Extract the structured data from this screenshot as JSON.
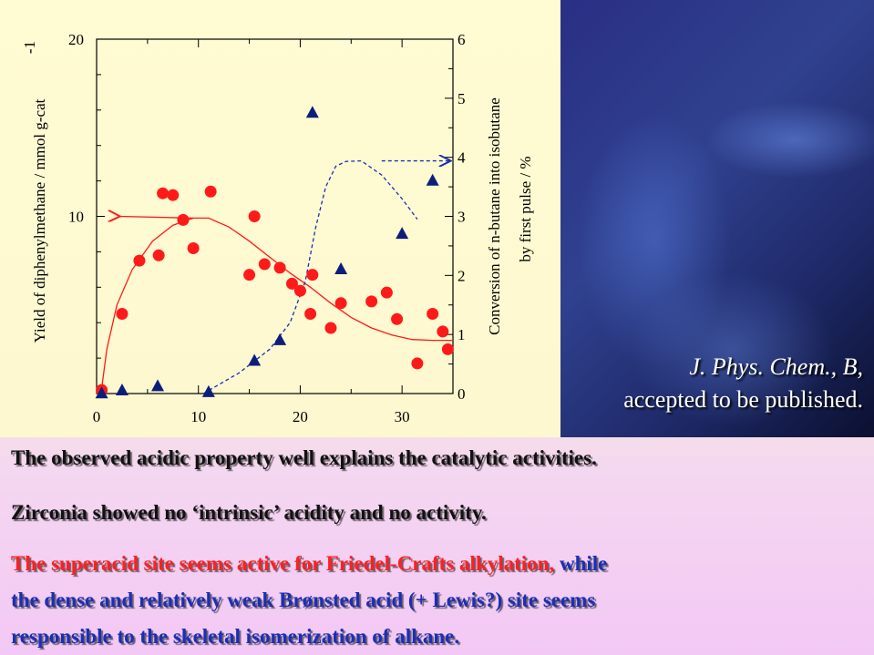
{
  "chart_data": {
    "type": "scatter",
    "x_ticks": [
      0,
      10,
      20,
      30
    ],
    "xlim": [
      0,
      35
    ],
    "y_left": {
      "label": "Yield of diphenylmethane / mmol g-cat",
      "label_sup": "-1",
      "ticks": [
        10,
        20
      ],
      "ylim": [
        0,
        20
      ]
    },
    "y_right": {
      "label_line1": "Conversion of n-butane into isobutane",
      "label_line2": "by first pulse / %",
      "ticks": [
        0,
        1,
        2,
        3,
        4,
        5,
        6
      ],
      "ylim": [
        0,
        6
      ]
    },
    "series": [
      {
        "axis": "left",
        "marker": "circle",
        "color": "#ff1a1a",
        "points": [
          [
            0.5,
            0.2
          ],
          [
            2.5,
            4.5
          ],
          [
            4.2,
            7.5
          ],
          [
            6.1,
            7.8
          ],
          [
            6.5,
            11.3
          ],
          [
            7.5,
            11.2
          ],
          [
            8.5,
            9.8
          ],
          [
            9.5,
            8.2
          ],
          [
            11.2,
            11.4
          ],
          [
            15.0,
            6.7
          ],
          [
            15.5,
            10.0
          ],
          [
            16.5,
            7.3
          ],
          [
            18.0,
            7.1
          ],
          [
            19.2,
            6.2
          ],
          [
            20.0,
            5.8
          ],
          [
            21.0,
            4.5
          ],
          [
            21.2,
            6.7
          ],
          [
            23.0,
            3.7
          ],
          [
            24.0,
            5.1
          ],
          [
            27.0,
            5.2
          ],
          [
            28.5,
            5.7
          ],
          [
            29.5,
            4.2
          ],
          [
            31.5,
            1.7
          ],
          [
            33.0,
            4.5
          ],
          [
            34.0,
            3.5
          ],
          [
            34.5,
            2.5
          ]
        ]
      },
      {
        "axis": "right",
        "marker": "triangle",
        "color": "#0d1e7a",
        "points": [
          [
            0.5,
            0.0
          ],
          [
            2.5,
            0.05
          ],
          [
            6.0,
            0.12
          ],
          [
            11.0,
            0.02
          ],
          [
            15.5,
            0.55
          ],
          [
            18.0,
            0.9
          ],
          [
            21.2,
            4.75
          ],
          [
            24.0,
            2.1
          ],
          [
            30.0,
            2.7
          ],
          [
            33.0,
            3.6
          ]
        ]
      }
    ],
    "trend_lines": [
      {
        "axis": "left",
        "style": "solid",
        "color": "#ff1a1a",
        "arrow": "left-end",
        "points": [
          [
            0.5,
            0.3
          ],
          [
            1.0,
            2.5
          ],
          [
            2.0,
            5.0
          ],
          [
            3.5,
            7.0
          ],
          [
            5.5,
            8.6
          ],
          [
            7.5,
            9.5
          ],
          [
            9.5,
            9.9
          ],
          [
            11.0,
            9.9
          ],
          [
            13.0,
            9.4
          ],
          [
            15.0,
            8.6
          ],
          [
            17.0,
            7.7
          ],
          [
            19.0,
            6.8
          ],
          [
            21.0,
            6.0
          ],
          [
            23.0,
            5.1
          ],
          [
            25.0,
            4.3
          ],
          [
            27.0,
            3.7
          ],
          [
            29.0,
            3.3
          ],
          [
            31.0,
            3.05
          ],
          [
            33.0,
            3.0
          ],
          [
            35.0,
            3.0
          ]
        ],
        "arrow_to": [
          2.3,
          10.0
        ]
      },
      {
        "axis": "right",
        "style": "dashed",
        "color": "#1a2fb5",
        "arrow": "right-end",
        "points": [
          [
            10.5,
            0.0
          ],
          [
            14.0,
            0.35
          ],
          [
            17.0,
            0.75
          ],
          [
            19.0,
            1.2
          ],
          [
            20.5,
            1.9
          ],
          [
            21.5,
            2.8
          ],
          [
            22.5,
            3.5
          ],
          [
            23.5,
            3.85
          ],
          [
            24.5,
            3.93
          ],
          [
            26.0,
            3.94
          ],
          [
            28.0,
            3.7
          ],
          [
            30.0,
            3.3
          ],
          [
            31.5,
            2.95
          ]
        ],
        "arrow_from": [
          28.0,
          3.94
        ],
        "arrow_to": [
          34.8,
          3.94
        ]
      }
    ]
  },
  "citation": {
    "journal": "J. Phys. Chem., B,",
    "status": "accepted to be published."
  },
  "text": {
    "line1": "The observed acidic property well explains the catalytic activities.",
    "line2": "Zirconia showed no ‘intrinsic’ acidity and no activity.",
    "line3_red": "The superacid site seems active for Friedel-Crafts alkylation,",
    "line3_blue": " while",
    "line4": "the dense and relatively weak Brønsted acid (+ Lewis?) site seems",
    "line5": "responsible to the skeletal isomerization of alkane."
  }
}
